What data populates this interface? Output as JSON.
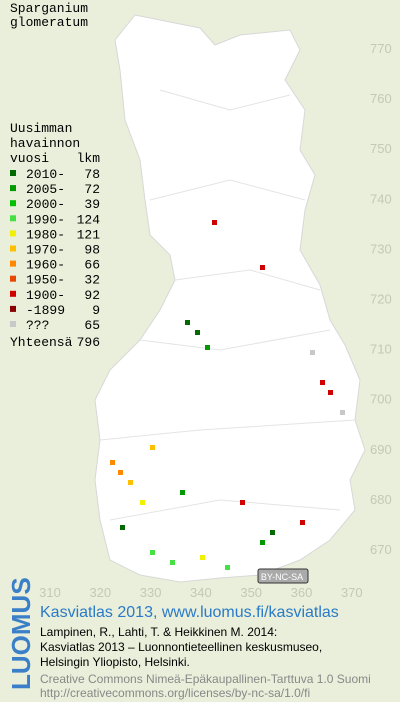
{
  "title": {
    "line1": "Sparganium",
    "line2": "glomeratum"
  },
  "legend": {
    "heading": [
      "Uusimman",
      "havainnon",
      "vuosi"
    ],
    "count_header": "lkm",
    "rows": [
      {
        "label": "2010-",
        "count": 78,
        "color": "#006a00"
      },
      {
        "label": "2005-",
        "count": 72,
        "color": "#009a00"
      },
      {
        "label": "2000-",
        "count": 39,
        "color": "#00c000"
      },
      {
        "label": "1990-",
        "count": 124,
        "color": "#44e044"
      },
      {
        "label": "1980-",
        "count": 121,
        "color": "#f0f000"
      },
      {
        "label": "1970-",
        "count": 98,
        "color": "#ffc000"
      },
      {
        "label": "1960-",
        "count": 66,
        "color": "#ff8800"
      },
      {
        "label": "1950-",
        "count": 32,
        "color": "#e84800"
      },
      {
        "label": "1900-",
        "count": 92,
        "color": "#d00000"
      },
      {
        "label": "-1899",
        "count": 9,
        "color": "#880000"
      },
      {
        "label": "???",
        "count": 65,
        "color": "#c8c8c8"
      }
    ],
    "total_label": "Yhteensä",
    "total": 796
  },
  "axes": {
    "north_labels": [
      770,
      760,
      750,
      740,
      730,
      720,
      710,
      700,
      690,
      680,
      670
    ],
    "east_labels": [
      310,
      320,
      330,
      340,
      350,
      360,
      370
    ]
  },
  "license_badge": "BY-NC-SA",
  "footer": {
    "brand": "LUOMUS",
    "headline": "Kasviatlas 2013, www.luomus.fi/kasviatlas",
    "citation": [
      "Lampinen, R., Lahti, T. & Heikkinen M. 2014:",
      "Kasviatlas 2013 – Luonnontieteellinen keskusmuseo,",
      "Helsingin Yliopisto, Helsinki."
    ],
    "license": [
      "Creative Commons Nimeä-Epäkaupallinen-Tarttuva 1.0 Suomi",
      "http://creativecommons.org/licenses/by-nc-sa/1.0/fi"
    ]
  }
}
